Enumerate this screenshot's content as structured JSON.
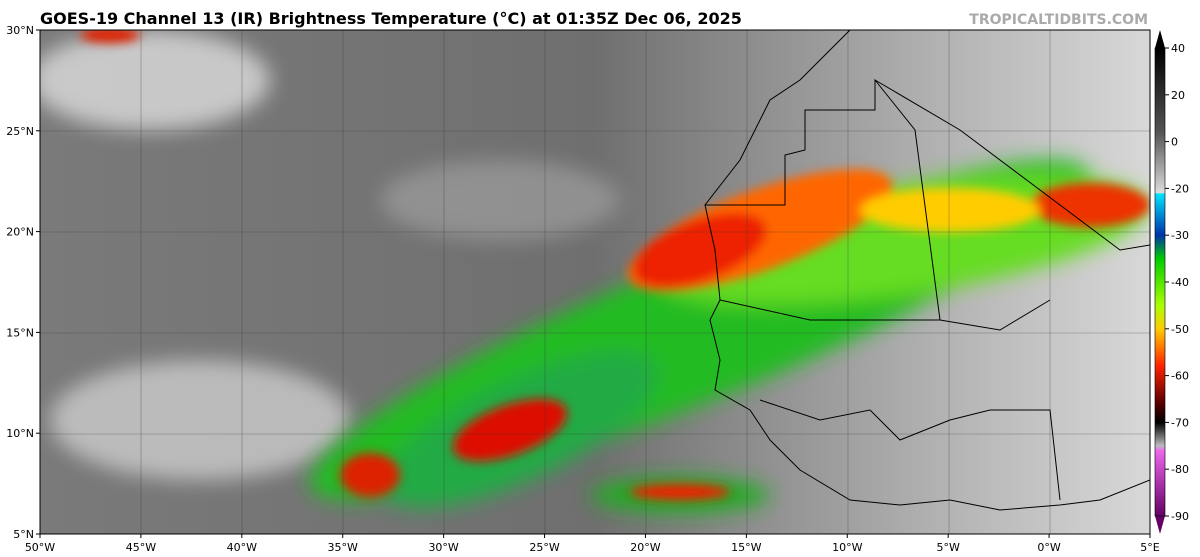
{
  "header": {
    "title": "GOES-19 Channel 13 (IR) Brightness Temperature (°C) at 01:35Z Dec 06, 2025",
    "watermark": "TROPICALTIDBITS.COM"
  },
  "map": {
    "lon_labels": [
      "50°W",
      "45°W",
      "40°W",
      "35°W",
      "30°W",
      "25°W",
      "20°W",
      "15°W",
      "10°W",
      "5°W",
      "0°W",
      "5°E"
    ],
    "lat_labels": [
      "30°N",
      "25°N",
      "20°N",
      "15°N",
      "10°N",
      "5°N"
    ]
  },
  "colorbar": {
    "labels": [
      "40",
      "20",
      "0",
      "-20",
      "-30",
      "-40",
      "-50",
      "-60",
      "-70",
      "-80",
      "-90"
    ]
  }
}
